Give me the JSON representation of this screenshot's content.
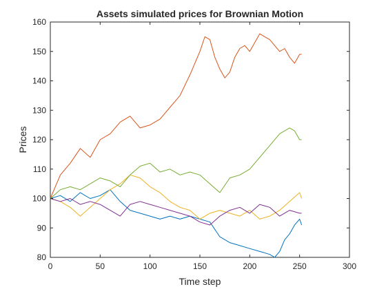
{
  "chart_data": {
    "type": "line",
    "title": "Assets simulated prices for Brownian Motion",
    "xlabel": "Time step",
    "ylabel": "Prices",
    "xlim": [
      0,
      300
    ],
    "ylim": [
      80,
      160
    ],
    "xticks": [
      "0",
      "50",
      "100",
      "150",
      "200",
      "250",
      "300"
    ],
    "yticks": [
      "80",
      "90",
      "100",
      "110",
      "120",
      "130",
      "140",
      "150",
      "160"
    ],
    "grid": false,
    "legend": "none",
    "series": [
      {
        "color": "#0072BD",
        "x": [
          0,
          10,
          20,
          30,
          40,
          50,
          60,
          70,
          80,
          90,
          100,
          110,
          120,
          130,
          140,
          150,
          160,
          170,
          180,
          190,
          200,
          210,
          220,
          225,
          230,
          235,
          240,
          245,
          250,
          252
        ],
        "values": [
          100,
          101,
          99,
          102,
          100,
          101,
          103,
          99,
          96,
          95,
          94,
          93,
          94,
          93,
          94,
          93,
          92,
          87,
          85,
          84,
          83,
          82,
          81,
          80,
          82,
          86,
          88,
          91,
          93,
          91
        ]
      },
      {
        "color": "#D95319",
        "x": [
          0,
          10,
          20,
          30,
          40,
          50,
          60,
          70,
          80,
          90,
          100,
          110,
          120,
          130,
          140,
          150,
          155,
          160,
          165,
          170,
          175,
          180,
          185,
          190,
          195,
          200,
          205,
          210,
          215,
          220,
          225,
          230,
          235,
          240,
          245,
          250,
          252
        ],
        "values": [
          100,
          108,
          112,
          117,
          114,
          120,
          122,
          126,
          128,
          124,
          125,
          127,
          131,
          135,
          142,
          150,
          155,
          154,
          148,
          144,
          141,
          143,
          148,
          151,
          152,
          150,
          153,
          156,
          155,
          154,
          152,
          150,
          151,
          148,
          146,
          149,
          149
        ]
      },
      {
        "color": "#EDB120",
        "x": [
          0,
          10,
          20,
          30,
          40,
          50,
          60,
          70,
          80,
          90,
          100,
          110,
          120,
          130,
          140,
          150,
          160,
          170,
          180,
          190,
          200,
          210,
          220,
          230,
          240,
          250,
          252
        ],
        "values": [
          100,
          99,
          97,
          94,
          97,
          100,
          103,
          105,
          108,
          107,
          104,
          102,
          99,
          97,
          96,
          93,
          95,
          96,
          95,
          94,
          96,
          93,
          94,
          96,
          99,
          102,
          100
        ]
      },
      {
        "color": "#7E2F8E",
        "x": [
          0,
          10,
          20,
          30,
          40,
          50,
          60,
          70,
          80,
          90,
          100,
          110,
          120,
          130,
          140,
          150,
          160,
          170,
          180,
          190,
          200,
          210,
          220,
          230,
          240,
          250,
          252
        ],
        "values": [
          100,
          99,
          100,
          98,
          99,
          98,
          96,
          94,
          98,
          99,
          98,
          97,
          96,
          95,
          94,
          92,
          91,
          94,
          96,
          97,
          95,
          98,
          97,
          94,
          96,
          95,
          95
        ]
      },
      {
        "color": "#77AC30",
        "x": [
          0,
          10,
          20,
          30,
          40,
          50,
          60,
          70,
          80,
          90,
          100,
          110,
          120,
          130,
          140,
          150,
          160,
          170,
          180,
          190,
          200,
          210,
          220,
          230,
          240,
          245,
          250,
          252
        ],
        "values": [
          100,
          103,
          104,
          103,
          105,
          107,
          106,
          104,
          108,
          111,
          112,
          109,
          110,
          108,
          109,
          108,
          105,
          102,
          107,
          108,
          110,
          114,
          118,
          122,
          124,
          123,
          120,
          120
        ]
      }
    ]
  }
}
